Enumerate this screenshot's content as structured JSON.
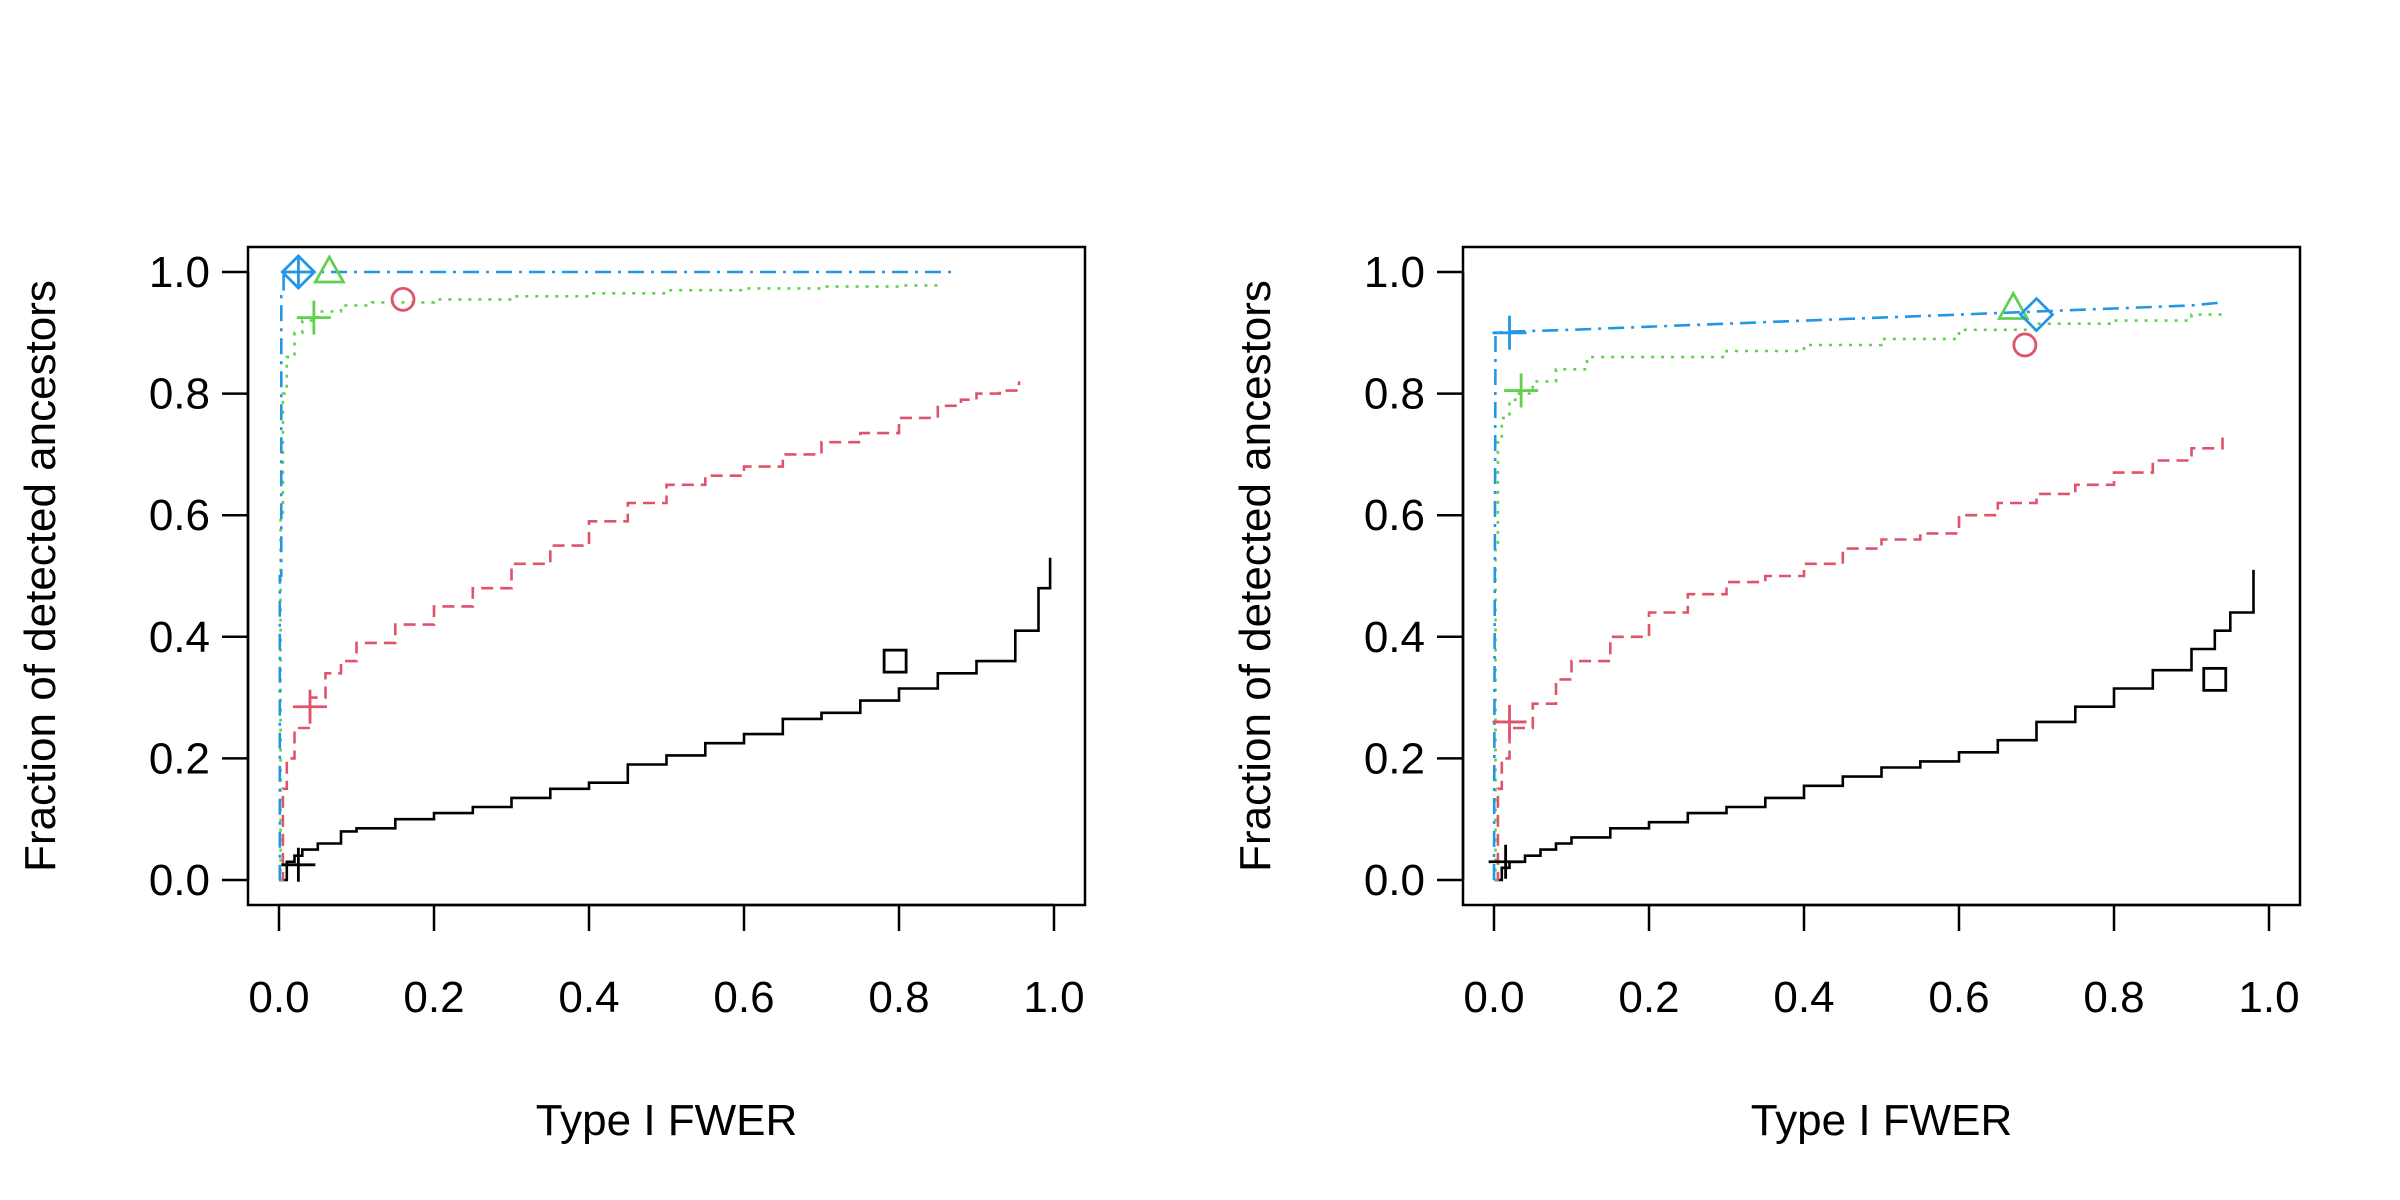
{
  "colors": {
    "black": "#000000",
    "red": "#DF536B",
    "green": "#61D04F",
    "blue": "#2297E6"
  },
  "chart_data": [
    {
      "type": "line",
      "xlabel": "Type I FWER",
      "ylabel": "Fraction of detected ancestors",
      "xlim": [
        0,
        1
      ],
      "ylim": [
        0,
        1
      ],
      "x_ticks": [
        "0.0",
        "0.2",
        "0.4",
        "0.6",
        "0.8",
        "1.0"
      ],
      "y_ticks": [
        "0.0",
        "0.2",
        "0.4",
        "0.6",
        "0.8",
        "1.0"
      ],
      "grid": false,
      "series": [
        {
          "color": "black",
          "dash": "solid",
          "step": true,
          "x": [
            0,
            0.01,
            0.02,
            0.03,
            0.05,
            0.08,
            0.1,
            0.15,
            0.2,
            0.25,
            0.3,
            0.35,
            0.4,
            0.45,
            0.5,
            0.55,
            0.6,
            0.65,
            0.7,
            0.75,
            0.8,
            0.85,
            0.9,
            0.95,
            0.98,
            0.995
          ],
          "y": [
            0,
            0.03,
            0.04,
            0.05,
            0.06,
            0.08,
            0.085,
            0.1,
            0.11,
            0.12,
            0.135,
            0.15,
            0.16,
            0.19,
            0.205,
            0.225,
            0.24,
            0.265,
            0.275,
            0.295,
            0.315,
            0.34,
            0.36,
            0.41,
            0.48,
            0.53
          ]
        },
        {
          "color": "red",
          "dash": "dashed",
          "step": true,
          "x": [
            0,
            0.005,
            0.01,
            0.02,
            0.04,
            0.06,
            0.08,
            0.1,
            0.15,
            0.2,
            0.25,
            0.3,
            0.35,
            0.4,
            0.45,
            0.5,
            0.55,
            0.6,
            0.65,
            0.7,
            0.75,
            0.8,
            0.85,
            0.88,
            0.9,
            0.93,
            0.955
          ],
          "y": [
            0,
            0.15,
            0.2,
            0.25,
            0.3,
            0.34,
            0.36,
            0.39,
            0.42,
            0.45,
            0.48,
            0.52,
            0.55,
            0.59,
            0.62,
            0.65,
            0.665,
            0.68,
            0.7,
            0.72,
            0.735,
            0.76,
            0.78,
            0.79,
            0.8,
            0.805,
            0.82
          ]
        },
        {
          "color": "green",
          "dash": "dotted",
          "step": true,
          "x": [
            0,
            0.002,
            0.005,
            0.01,
            0.02,
            0.03,
            0.05,
            0.08,
            0.12,
            0.2,
            0.3,
            0.4,
            0.5,
            0.6,
            0.7,
            0.8,
            0.85
          ],
          "y": [
            0,
            0.6,
            0.8,
            0.86,
            0.9,
            0.92,
            0.935,
            0.945,
            0.95,
            0.955,
            0.96,
            0.965,
            0.97,
            0.973,
            0.976,
            0.978,
            0.98
          ]
        },
        {
          "color": "blue",
          "dash": "dashdot",
          "step": true,
          "x": [
            0,
            0.001,
            0.003,
            0.006,
            0.87
          ],
          "y": [
            0,
            0.5,
            0.96,
            1.0,
            1.0
          ]
        }
      ],
      "markers": [
        {
          "shape": "plus",
          "color": "black",
          "x": 0.025,
          "y": 0.025
        },
        {
          "shape": "square",
          "color": "black",
          "x": 0.795,
          "y": 0.36
        },
        {
          "shape": "plus",
          "color": "red",
          "x": 0.04,
          "y": 0.285
        },
        {
          "shape": "circle",
          "color": "red",
          "x": 0.16,
          "y": 0.955
        },
        {
          "shape": "plus",
          "color": "green",
          "x": 0.045,
          "y": 0.925
        },
        {
          "shape": "triangle",
          "color": "green",
          "x": 0.065,
          "y": 1.0
        },
        {
          "shape": "plus",
          "color": "blue",
          "x": 0.025,
          "y": 1.0
        },
        {
          "shape": "diamond",
          "color": "blue",
          "x": 0.025,
          "y": 1.0
        }
      ]
    },
    {
      "type": "line",
      "xlabel": "Type I FWER",
      "ylabel": "Fraction of detected ancestors",
      "xlim": [
        0,
        1
      ],
      "ylim": [
        0,
        1
      ],
      "x_ticks": [
        "0.0",
        "0.2",
        "0.4",
        "0.6",
        "0.8",
        "1.0"
      ],
      "y_ticks": [
        "0.0",
        "0.2",
        "0.4",
        "0.6",
        "0.8",
        "1.0"
      ],
      "grid": false,
      "series": [
        {
          "color": "black",
          "dash": "solid",
          "step": true,
          "x": [
            0,
            0.01,
            0.02,
            0.04,
            0.06,
            0.08,
            0.1,
            0.15,
            0.2,
            0.25,
            0.3,
            0.35,
            0.4,
            0.45,
            0.5,
            0.55,
            0.6,
            0.65,
            0.7,
            0.75,
            0.8,
            0.85,
            0.9,
            0.93,
            0.95,
            0.98
          ],
          "y": [
            0,
            0.02,
            0.03,
            0.04,
            0.05,
            0.06,
            0.07,
            0.085,
            0.095,
            0.11,
            0.12,
            0.135,
            0.155,
            0.17,
            0.185,
            0.195,
            0.21,
            0.23,
            0.26,
            0.285,
            0.315,
            0.345,
            0.38,
            0.41,
            0.44,
            0.51
          ]
        },
        {
          "color": "red",
          "dash": "dashed",
          "step": true,
          "x": [
            0,
            0.005,
            0.01,
            0.02,
            0.05,
            0.08,
            0.1,
            0.15,
            0.2,
            0.25,
            0.3,
            0.35,
            0.4,
            0.45,
            0.5,
            0.55,
            0.6,
            0.65,
            0.7,
            0.75,
            0.8,
            0.85,
            0.9,
            0.94
          ],
          "y": [
            0,
            0.15,
            0.2,
            0.25,
            0.29,
            0.33,
            0.36,
            0.4,
            0.44,
            0.47,
            0.49,
            0.5,
            0.52,
            0.545,
            0.56,
            0.57,
            0.6,
            0.62,
            0.635,
            0.65,
            0.67,
            0.69,
            0.71,
            0.73
          ]
        },
        {
          "color": "green",
          "dash": "dotted",
          "step": true,
          "x": [
            0,
            0.002,
            0.005,
            0.01,
            0.02,
            0.03,
            0.05,
            0.08,
            0.12,
            0.2,
            0.3,
            0.4,
            0.5,
            0.6,
            0.7,
            0.8,
            0.9,
            0.94
          ],
          "y": [
            0,
            0.55,
            0.72,
            0.76,
            0.79,
            0.8,
            0.82,
            0.84,
            0.86,
            0.86,
            0.87,
            0.88,
            0.89,
            0.905,
            0.915,
            0.92,
            0.93,
            0.94
          ]
        },
        {
          "color": "blue",
          "dash": "dashdot",
          "step": false,
          "x": [
            0,
            0.001,
            0.002,
            0.02,
            0.1,
            0.2,
            0.3,
            0.4,
            0.5,
            0.6,
            0.7,
            0.8,
            0.9,
            0.94
          ],
          "y": [
            0,
            0.5,
            0.9,
            0.902,
            0.905,
            0.91,
            0.915,
            0.92,
            0.925,
            0.93,
            0.935,
            0.94,
            0.945,
            0.95
          ]
        }
      ],
      "markers": [
        {
          "shape": "plus",
          "color": "black",
          "x": 0.015,
          "y": 0.03
        },
        {
          "shape": "square",
          "color": "black",
          "x": 0.93,
          "y": 0.33
        },
        {
          "shape": "plus",
          "color": "red",
          "x": 0.02,
          "y": 0.26
        },
        {
          "shape": "circle",
          "color": "red",
          "x": 0.685,
          "y": 0.88
        },
        {
          "shape": "plus",
          "color": "green",
          "x": 0.035,
          "y": 0.805
        },
        {
          "shape": "triangle",
          "color": "green",
          "x": 0.67,
          "y": 0.94
        },
        {
          "shape": "plus",
          "color": "blue",
          "x": 0.02,
          "y": 0.9
        },
        {
          "shape": "diamond",
          "color": "blue",
          "x": 0.7,
          "y": 0.93
        }
      ]
    }
  ]
}
